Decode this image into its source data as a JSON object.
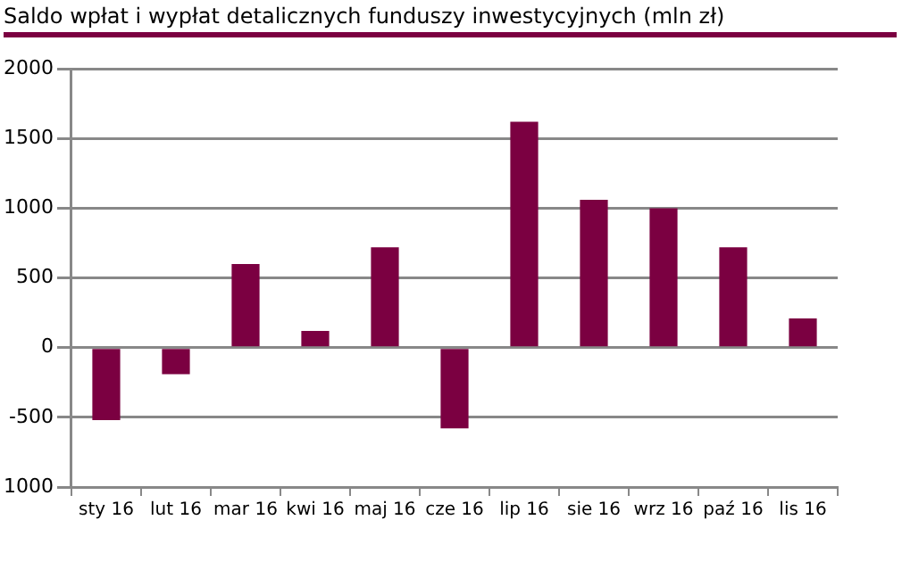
{
  "chart_data": {
    "type": "bar",
    "title": "Saldo wpłat i wypłat detalicznych funduszy inwestycyjnych (mln zł)",
    "categories": [
      "sty 16",
      "lut 16",
      "mar 16",
      "kwi 16",
      "maj 16",
      "cze 16",
      "lip 16",
      "sie 16",
      "wrz 16",
      "paź 16",
      "lis 16"
    ],
    "values": [
      -520,
      -190,
      600,
      120,
      720,
      -580,
      1620,
      1060,
      1000,
      720,
      210
    ],
    "color": "#7b0041",
    "ylim": [
      -1000,
      2000
    ],
    "yticks": [
      {
        "value": -1000,
        "label": "1000"
      },
      -500,
      0,
      500,
      1000,
      1500,
      2000
    ],
    "grid": "y",
    "legend": false
  }
}
